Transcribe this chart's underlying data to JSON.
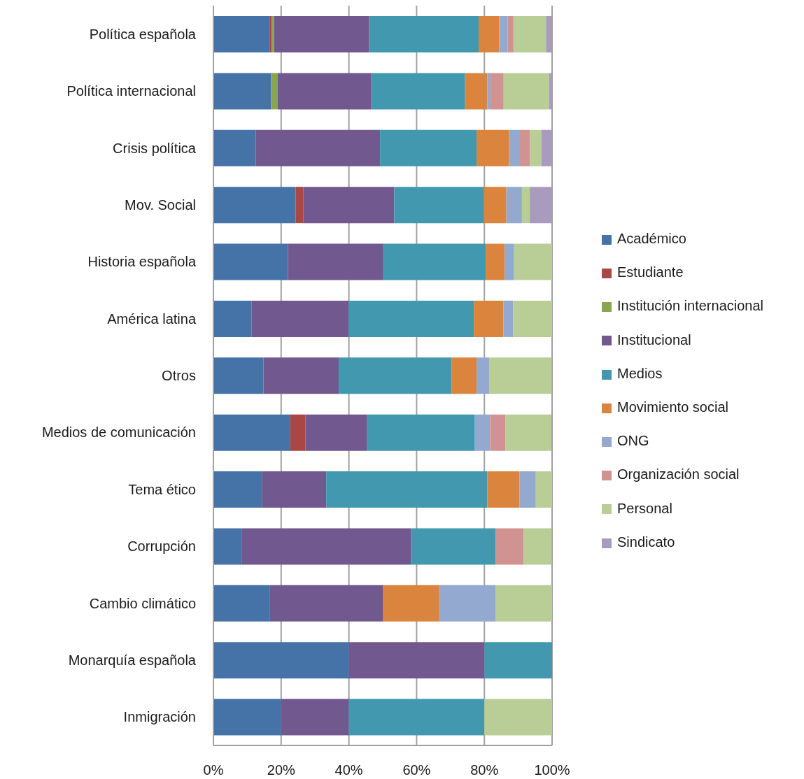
{
  "chart_data": {
    "type": "bar",
    "orientation": "horizontal",
    "stacked": true,
    "categories": [
      "Política española",
      "Política internacional",
      "Crisis política",
      "Mov. Social",
      "Historia española",
      "América latina",
      "Otros",
      "Medios de comunicación",
      "Tema ético",
      "Corrupción",
      "Cambio climático",
      "Monarquía española",
      "Inmigración"
    ],
    "series": [
      {
        "name": "Académico",
        "color": "#4572a7",
        "values": [
          16.7,
          17.0,
          12.5,
          24.3,
          22.0,
          11.3,
          14.8,
          22.7,
          14.3,
          8.3,
          16.7,
          40,
          20
        ]
      },
      {
        "name": "Estudiante",
        "color": "#aa4643",
        "values": [
          0.5,
          0,
          0,
          2.2,
          0,
          0,
          0,
          4.5,
          0,
          0,
          0,
          0,
          0
        ]
      },
      {
        "name": "Institución internacional",
        "color": "#89a54e",
        "values": [
          0.7,
          2.0,
          0,
          0,
          0,
          0,
          0,
          0,
          0,
          0,
          0,
          0,
          0
        ]
      },
      {
        "name": "Institucional",
        "color": "#71588f",
        "values": [
          28.1,
          27.5,
          36.7,
          26.9,
          28.0,
          28.6,
          22.2,
          18.2,
          19.0,
          50,
          33.3,
          40,
          20
        ]
      },
      {
        "name": "Medios",
        "color": "#4198af",
        "values": [
          32.3,
          27.8,
          28.5,
          26.5,
          30.4,
          37.0,
          33.3,
          31.8,
          47.6,
          25,
          0,
          20,
          40
        ]
      },
      {
        "name": "Movimiento social",
        "color": "#db843d",
        "values": [
          6.1,
          6.6,
          9.6,
          6.6,
          5.6,
          8.7,
          7.4,
          0,
          9.5,
          0,
          16.7,
          0,
          0
        ]
      },
      {
        "name": "ONG",
        "color": "#93a9cf",
        "values": [
          2.5,
          0.9,
          3.2,
          4.6,
          2.8,
          2.9,
          3.7,
          4.5,
          4.8,
          0,
          16.7,
          0,
          0
        ]
      },
      {
        "name": "Organización social",
        "color": "#d19392",
        "values": [
          1.7,
          3.9,
          3.0,
          0,
          0,
          0,
          0,
          4.5,
          0,
          8.3,
          0,
          0,
          0
        ]
      },
      {
        "name": "Personal",
        "color": "#b9cd96",
        "values": [
          9.6,
          13.4,
          3.3,
          2.3,
          11.2,
          11.5,
          18.5,
          13.6,
          4.8,
          8.3,
          16.7,
          0,
          20
        ]
      },
      {
        "name": "Sindicato",
        "color": "#a99bbd",
        "values": [
          1.8,
          0.9,
          3.2,
          6.6,
          0,
          0,
          0,
          0,
          0,
          0,
          0,
          0,
          0
        ]
      }
    ],
    "xlim": [
      0,
      100
    ],
    "xticks": [
      {
        "value": 0,
        "label": "0%"
      },
      {
        "value": 20,
        "label": "20%"
      },
      {
        "value": 40,
        "label": "40%"
      },
      {
        "value": 60,
        "label": "60%"
      },
      {
        "value": 80,
        "label": "80%"
      },
      {
        "value": 100,
        "label": "100%"
      }
    ],
    "grid": "x",
    "legend": "right"
  }
}
